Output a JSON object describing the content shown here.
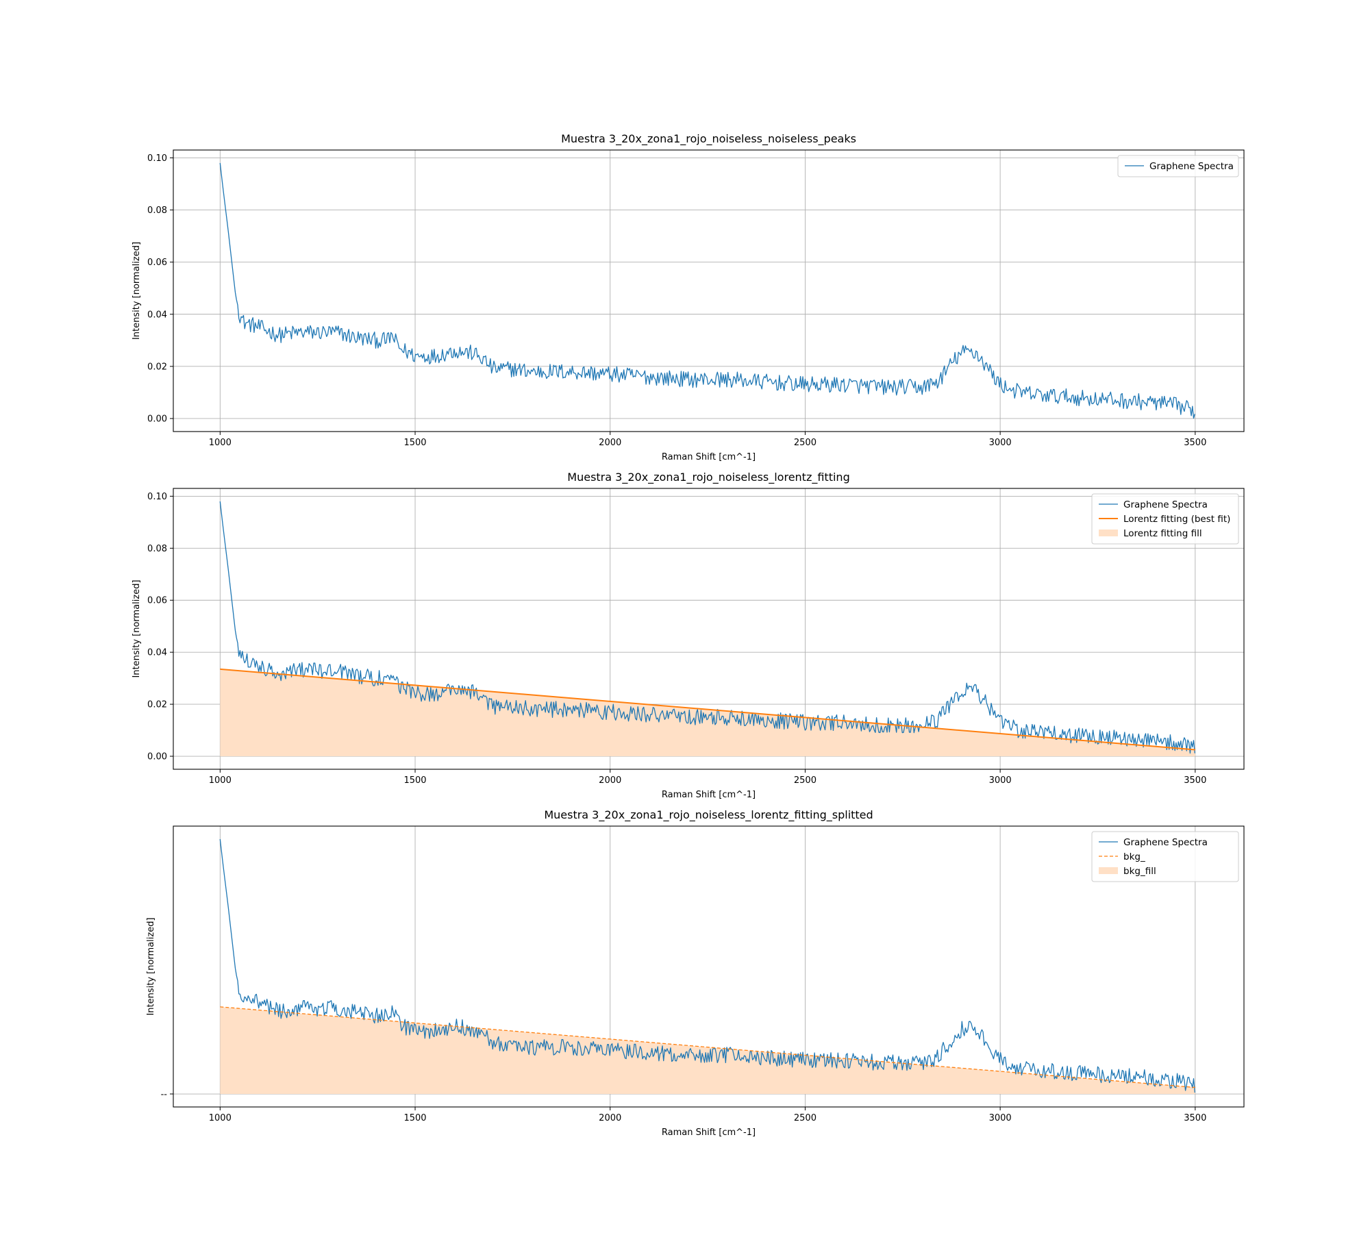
{
  "chart_data": [
    {
      "type": "line",
      "title": "Muestra 3_20x_zona1_rojo_noiseless_noiseless_peaks",
      "xlabel": "Raman Shift [cm^-1]",
      "ylabel": "Intensity [normalized]",
      "xlim": [
        880,
        3625
      ],
      "ylim": [
        -0.005,
        0.103
      ],
      "xticks": [
        1000,
        1500,
        2000,
        2500,
        3000,
        3500
      ],
      "xtick_labels": [
        "1000",
        "1500",
        "2000",
        "2500",
        "3000",
        "3500"
      ],
      "yticks": [
        0.0,
        0.02,
        0.04,
        0.06,
        0.08,
        0.1
      ],
      "ytick_labels": [
        "0.00",
        "0.02",
        "0.04",
        "0.06",
        "0.08",
        "0.10"
      ],
      "grid": true,
      "legend_position": "top-right",
      "series": [
        {
          "name": "Graphene Spectra",
          "kind": "line",
          "color": "#1f77b4",
          "x": [
            1000,
            1010,
            1020,
            1030,
            1040,
            1050,
            1060,
            1080,
            1100,
            1150,
            1200,
            1250,
            1300,
            1350,
            1400,
            1430,
            1440,
            1460,
            1500,
            1550,
            1600,
            1650,
            1680,
            1700,
            1750,
            1800,
            1900,
            2000,
            2100,
            2200,
            2300,
            2400,
            2500,
            2600,
            2700,
            2800,
            2840,
            2860,
            2880,
            2900,
            2920,
            2940,
            2960,
            2980,
            3000,
            3050,
            3100,
            3200,
            3300,
            3400,
            3450,
            3500
          ],
          "y": [
            0.098,
            0.085,
            0.073,
            0.06,
            0.047,
            0.04,
            0.037,
            0.036,
            0.035,
            0.032,
            0.033,
            0.033,
            0.033,
            0.031,
            0.03,
            0.03,
            0.032,
            0.027,
            0.024,
            0.024,
            0.026,
            0.025,
            0.022,
            0.019,
            0.019,
            0.018,
            0.018,
            0.017,
            0.016,
            0.015,
            0.015,
            0.014,
            0.013,
            0.013,
            0.012,
            0.012,
            0.014,
            0.018,
            0.022,
            0.025,
            0.026,
            0.025,
            0.021,
            0.017,
            0.013,
            0.01,
            0.009,
            0.008,
            0.007,
            0.006,
            0.005,
            0.003
          ]
        }
      ]
    },
    {
      "type": "line",
      "title": "Muestra 3_20x_zona1_rojo_noiseless_lorentz_fitting",
      "xlabel": "Raman Shift [cm^-1]",
      "ylabel": "Intensity [normalized]",
      "xlim": [
        880,
        3625
      ],
      "ylim": [
        -0.005,
        0.103
      ],
      "xticks": [
        1000,
        1500,
        2000,
        2500,
        3000,
        3500
      ],
      "xtick_labels": [
        "1000",
        "1500",
        "2000",
        "2500",
        "3000",
        "3500"
      ],
      "yticks": [
        0.0,
        0.02,
        0.04,
        0.06,
        0.08,
        0.1
      ],
      "ytick_labels": [
        "0.00",
        "0.02",
        "0.04",
        "0.06",
        "0.08",
        "0.10"
      ],
      "grid": true,
      "legend_position": "top-right",
      "series": [
        {
          "name": "Graphene Spectra",
          "kind": "line",
          "color": "#1f77b4",
          "x": [
            1000,
            1010,
            1020,
            1030,
            1040,
            1050,
            1060,
            1080,
            1100,
            1150,
            1200,
            1250,
            1300,
            1350,
            1400,
            1430,
            1440,
            1460,
            1500,
            1550,
            1600,
            1650,
            1680,
            1700,
            1750,
            1800,
            1900,
            2000,
            2100,
            2200,
            2300,
            2400,
            2500,
            2600,
            2700,
            2800,
            2840,
            2860,
            2880,
            2900,
            2920,
            2940,
            2960,
            2980,
            3000,
            3050,
            3100,
            3200,
            3300,
            3400,
            3450,
            3500
          ],
          "y": [
            0.098,
            0.085,
            0.073,
            0.06,
            0.047,
            0.04,
            0.037,
            0.036,
            0.035,
            0.032,
            0.033,
            0.033,
            0.033,
            0.031,
            0.03,
            0.03,
            0.032,
            0.027,
            0.024,
            0.024,
            0.026,
            0.025,
            0.022,
            0.019,
            0.019,
            0.018,
            0.018,
            0.017,
            0.016,
            0.015,
            0.015,
            0.014,
            0.013,
            0.013,
            0.012,
            0.012,
            0.014,
            0.018,
            0.022,
            0.025,
            0.026,
            0.025,
            0.021,
            0.017,
            0.013,
            0.01,
            0.009,
            0.008,
            0.007,
            0.006,
            0.005,
            0.003
          ]
        },
        {
          "name": "Lorentz fitting (best fit)",
          "kind": "line",
          "color": "#ff7f0e",
          "x": [
            1000,
            3500
          ],
          "y": [
            0.0335,
            0.0025
          ]
        },
        {
          "name": "Lorentz fitting fill",
          "kind": "fill",
          "color": "#ffe0c6",
          "x": [
            1000,
            3500
          ],
          "y": [
            0.0335,
            0.0025
          ]
        }
      ]
    },
    {
      "type": "line",
      "title": "Muestra 3_20x_zona1_rojo_noiseless_lorentz_fitting_splitted",
      "xlabel": "Raman Shift [cm^-1]",
      "ylabel": "Intensity [normalized]",
      "xlim": [
        880,
        3625
      ],
      "ylim": [
        -0.005,
        0.103
      ],
      "xticks": [
        1000,
        1500,
        2000,
        2500,
        3000,
        3500
      ],
      "xtick_labels": [
        "1000",
        "1500",
        "2000",
        "2500",
        "3000",
        "3500"
      ],
      "yticks": [
        0.0
      ],
      "ytick_labels": [
        "--"
      ],
      "grid": true,
      "legend_position": "top-right",
      "series": [
        {
          "name": "Graphene Spectra",
          "kind": "line",
          "color": "#1f77b4",
          "x": [
            1000,
            1010,
            1020,
            1030,
            1040,
            1050,
            1060,
            1080,
            1100,
            1150,
            1200,
            1250,
            1300,
            1350,
            1400,
            1430,
            1440,
            1460,
            1500,
            1550,
            1600,
            1650,
            1680,
            1700,
            1750,
            1800,
            1900,
            2000,
            2100,
            2200,
            2300,
            2400,
            2500,
            2600,
            2700,
            2800,
            2840,
            2860,
            2880,
            2900,
            2920,
            2940,
            2960,
            2980,
            3000,
            3050,
            3100,
            3200,
            3300,
            3400,
            3450,
            3500
          ],
          "y": [
            0.098,
            0.085,
            0.073,
            0.06,
            0.047,
            0.04,
            0.037,
            0.036,
            0.035,
            0.032,
            0.033,
            0.033,
            0.033,
            0.031,
            0.03,
            0.03,
            0.032,
            0.027,
            0.024,
            0.024,
            0.026,
            0.025,
            0.022,
            0.019,
            0.019,
            0.018,
            0.018,
            0.017,
            0.016,
            0.015,
            0.015,
            0.014,
            0.013,
            0.013,
            0.012,
            0.012,
            0.014,
            0.018,
            0.022,
            0.025,
            0.026,
            0.025,
            0.021,
            0.017,
            0.013,
            0.01,
            0.009,
            0.008,
            0.007,
            0.006,
            0.005,
            0.003
          ]
        },
        {
          "name": "bkg_",
          "kind": "dashed",
          "color": "#ff7f0e",
          "x": [
            1000,
            3500
          ],
          "y": [
            0.0335,
            0.0025
          ]
        },
        {
          "name": "bkg_fill",
          "kind": "fill",
          "color": "#ffe0c6",
          "x": [
            1000,
            3500
          ],
          "y": [
            0.0335,
            0.0025
          ]
        }
      ]
    }
  ]
}
